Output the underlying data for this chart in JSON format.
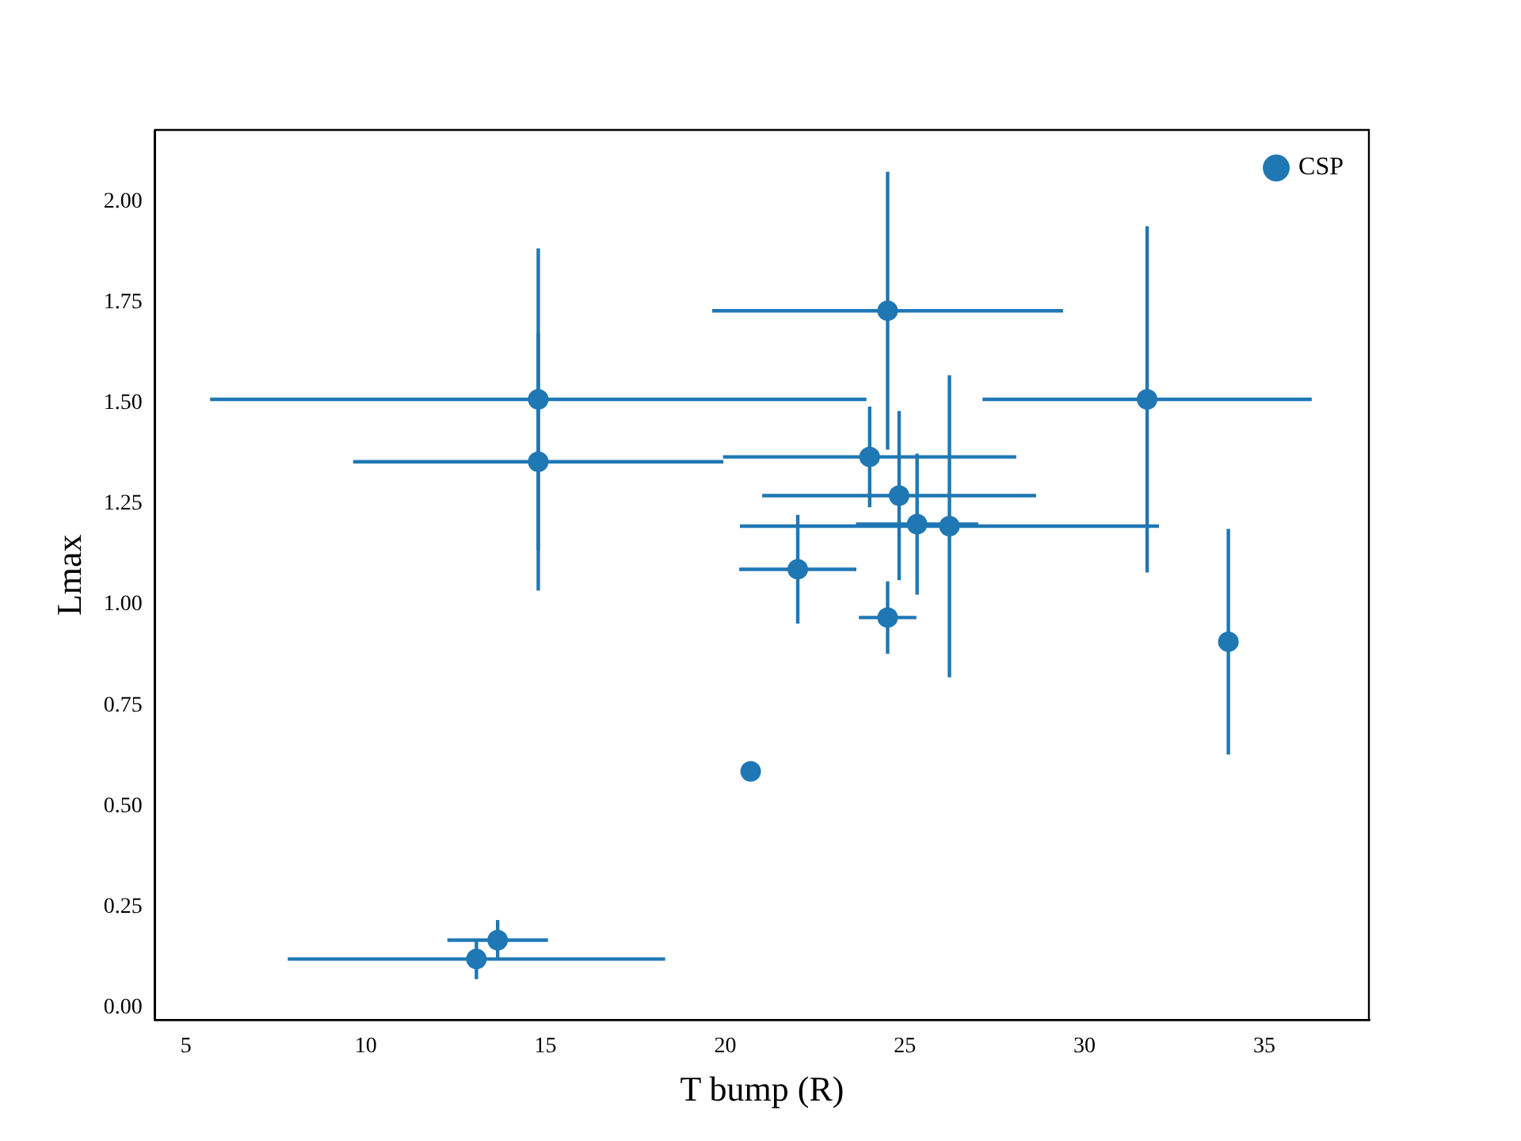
{
  "chart_data": {
    "type": "scatter",
    "xlabel": "T bump (R)",
    "ylabel": "Lmax",
    "xlim": [
      4.14,
      37.91
    ],
    "ylim": [
      -0.032,
      2.179
    ],
    "xticks": [
      5,
      10,
      15,
      20,
      25,
      30,
      35
    ],
    "yticks": [
      {
        "value": 0,
        "label": "0.00"
      },
      {
        "value": 0.25,
        "label": "0.25"
      },
      {
        "value": 0.5,
        "label": "0.50"
      },
      {
        "value": 0.75,
        "label": "0.75"
      },
      {
        "value": 1,
        "label": "1.00"
      },
      {
        "value": 1.25,
        "label": "1.25"
      },
      {
        "value": 1.5,
        "label": "1.50"
      },
      {
        "value": 1.75,
        "label": "1.75"
      },
      {
        "value": 2,
        "label": "2.00"
      }
    ],
    "grid": false,
    "legend": "top right",
    "marker": "circle",
    "series": [
      {
        "name": "CSP",
        "color": "#1f77b4",
        "x": [
          14.8,
          14.8,
          24.52,
          31.74,
          24.02,
          24.84,
          25.34,
          26.24,
          22.02,
          24.52,
          34.0,
          20.71,
          13.08,
          13.67
        ],
        "values": [
          1.51,
          1.355,
          1.73,
          1.51,
          1.367,
          1.271,
          1.2,
          1.195,
          1.088,
          0.968,
          0.908,
          0.586,
          0.12,
          0.167
        ],
        "xerrors": [
          9.13,
          5.15,
          4.88,
          4.58,
          4.08,
          3.81,
          1.7,
          5.83,
          1.63,
          0.8,
          null,
          null,
          5.25,
          1.4
        ],
        "errors": [
          0.375,
          0.32,
          0.345,
          0.43,
          0.125,
          0.21,
          0.175,
          0.375,
          0.135,
          0.09,
          0.28,
          null,
          0.05,
          0.05
        ]
      }
    ]
  }
}
